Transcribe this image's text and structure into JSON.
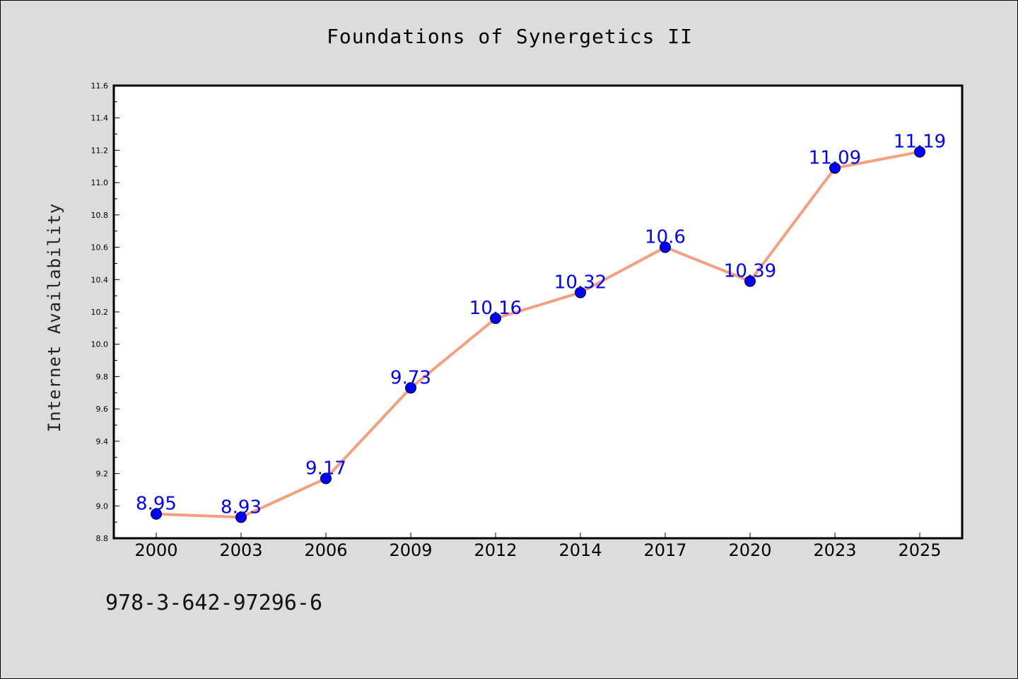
{
  "figure": {
    "title": "Foundations of Synergetics II",
    "footnote": "978-3-642-97296-6",
    "background": "#dcdcdc",
    "plot_background": "#ffffff"
  },
  "chart_data": {
    "type": "line",
    "title": "Foundations of Synergetics II",
    "xlabel": "",
    "ylabel": "Internet Availability",
    "categories": [
      "2000",
      "2003",
      "2006",
      "2009",
      "2012",
      "2014",
      "2017",
      "2020",
      "2023",
      "2025"
    ],
    "series": [
      {
        "values": [
          8.95,
          8.93,
          9.17,
          9.73,
          10.16,
          10.32,
          10.6,
          10.39,
          11.09,
          11.19
        ],
        "data_labels": [
          "8.95",
          "8.93",
          "9.17",
          "9.73",
          "10.16",
          "10.32",
          "10.6",
          "10.39",
          "11.09",
          "11.19"
        ],
        "line_color": "#f4a07f",
        "marker_color": "#0000ff",
        "label_color": "#0000ff"
      }
    ],
    "ylim": [
      8.8,
      11.6
    ],
    "yticks": [
      "8.8",
      "9.0",
      "9.2",
      "9.4",
      "9.6",
      "9.8",
      "10.0",
      "10.2",
      "10.4",
      "10.6",
      "10.8",
      "11.0",
      "11.2",
      "11.4",
      "11.6"
    ],
    "grid": false,
    "legend": "none"
  }
}
